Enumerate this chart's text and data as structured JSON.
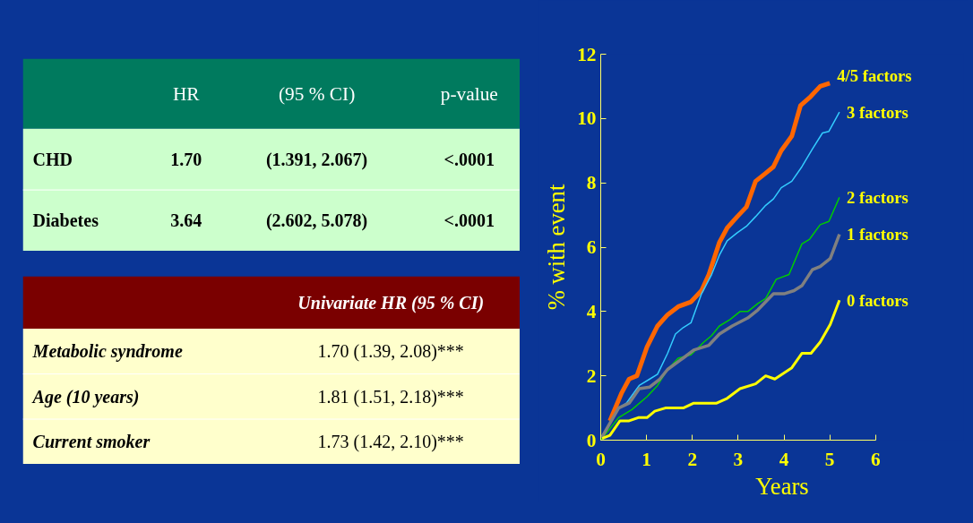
{
  "chart_data": [
    {
      "type": "other",
      "categories": [
        "HR",
        "(95 % CI)",
        "p-value"
      ],
      "y_categories": [
        "CHD",
        "Diabetes"
      ],
      "cell_labels": [
        [
          "1.70",
          "(1.391, 2.067)",
          "<.0001"
        ],
        [
          "3.64",
          "(2.602, 5.078)",
          "<.0001"
        ]
      ]
    },
    {
      "type": "other",
      "categories": [
        "Univariate HR (95 % CI)"
      ],
      "y_categories": [
        "Metabolic syndrome",
        "Age (10 years)",
        "Current smoker"
      ],
      "cell_labels": [
        [
          "1.70 (1.39, 2.08)***"
        ],
        [
          "1.81 (1.51, 2.18)***"
        ],
        [
          "1.73 (1.42, 2.10)***"
        ]
      ]
    },
    {
      "type": "line",
      "xlabel": "Years",
      "ylabel": "% with event",
      "xlim": [
        0,
        6
      ],
      "ylim": [
        0,
        12
      ],
      "xticks": [
        0,
        1,
        2,
        3,
        4,
        5,
        6
      ],
      "yticks": [
        0,
        2,
        4,
        6,
        8,
        10,
        12
      ],
      "series": [
        {
          "name": "4/5 factors",
          "color": "#ff6600",
          "x": [
            0.2,
            0.45,
            0.62,
            0.79,
            1.01,
            1.24,
            1.46,
            1.69,
            1.97,
            2.2,
            2.36,
            2.59,
            2.76,
            2.98,
            3.18,
            3.38,
            3.6,
            3.77,
            3.94,
            4.17,
            4.36,
            4.56,
            4.79,
            5.0
          ],
          "values": [
            0.6,
            1.45,
            1.9,
            2.0,
            2.9,
            3.55,
            3.9,
            4.15,
            4.3,
            4.65,
            5.15,
            6.15,
            6.6,
            6.95,
            7.25,
            8.05,
            8.3,
            8.5,
            9.0,
            9.45,
            10.4,
            10.65,
            11.0,
            11.1
          ]
        },
        {
          "name": "3 factors",
          "color": "#33ccff",
          "x": [
            0.03,
            0.39,
            0.56,
            0.84,
            1.07,
            1.24,
            1.46,
            1.63,
            1.8,
            1.97,
            2.2,
            2.42,
            2.59,
            2.76,
            2.98,
            3.18,
            3.38,
            3.6,
            3.77,
            3.94,
            4.17,
            4.39,
            4.62,
            4.84,
            4.98,
            5.21
          ],
          "values": [
            0.1,
            1.0,
            1.15,
            1.7,
            1.9,
            2.05,
            2.7,
            3.3,
            3.5,
            3.65,
            4.55,
            5.15,
            5.75,
            6.2,
            6.45,
            6.65,
            6.95,
            7.3,
            7.5,
            7.85,
            8.05,
            8.5,
            9.05,
            9.55,
            9.6,
            10.2
          ]
        },
        {
          "name": "2 factors",
          "color": "#00cc00",
          "x": [
            0.0,
            0.39,
            0.68,
            1.01,
            1.24,
            1.46,
            1.69,
            1.97,
            2.25,
            2.42,
            2.59,
            2.82,
            3.04,
            3.21,
            3.43,
            3.6,
            3.83,
            4.11,
            4.39,
            4.56,
            4.79,
            4.98,
            5.21
          ],
          "values": [
            0.0,
            0.7,
            0.95,
            1.35,
            1.7,
            2.2,
            2.55,
            2.65,
            3.05,
            3.25,
            3.55,
            3.75,
            4.0,
            4.0,
            4.25,
            4.4,
            5.0,
            5.15,
            6.1,
            6.25,
            6.7,
            6.8,
            7.55
          ]
        },
        {
          "name": "1 factors",
          "color": "#808080",
          "x": [
            0.03,
            0.39,
            0.62,
            0.84,
            1.07,
            1.29,
            1.46,
            1.75,
            2.03,
            2.36,
            2.59,
            2.87,
            3.21,
            3.43,
            3.6,
            3.77,
            4.0,
            4.22,
            4.39,
            4.62,
            4.79,
            5.01,
            5.21
          ],
          "values": [
            0.1,
            1.0,
            1.15,
            1.6,
            1.65,
            1.9,
            2.2,
            2.5,
            2.8,
            2.95,
            3.3,
            3.55,
            3.8,
            4.05,
            4.3,
            4.55,
            4.55,
            4.65,
            4.8,
            5.3,
            5.4,
            5.65,
            6.4
          ]
        },
        {
          "name": "0 factors",
          "color": "#ffff00",
          "x": [
            0.03,
            0.2,
            0.42,
            0.62,
            0.82,
            1.01,
            1.18,
            1.41,
            1.8,
            2.03,
            2.53,
            2.76,
            3.04,
            3.38,
            3.6,
            3.8,
            4.17,
            4.39,
            4.59,
            4.79,
            5.01,
            5.21
          ],
          "values": [
            0.05,
            0.15,
            0.6,
            0.6,
            0.7,
            0.7,
            0.9,
            1.0,
            1.0,
            1.15,
            1.15,
            1.3,
            1.6,
            1.75,
            2.0,
            1.9,
            2.25,
            2.7,
            2.7,
            3.05,
            3.6,
            4.35
          ]
        }
      ]
    }
  ]
}
